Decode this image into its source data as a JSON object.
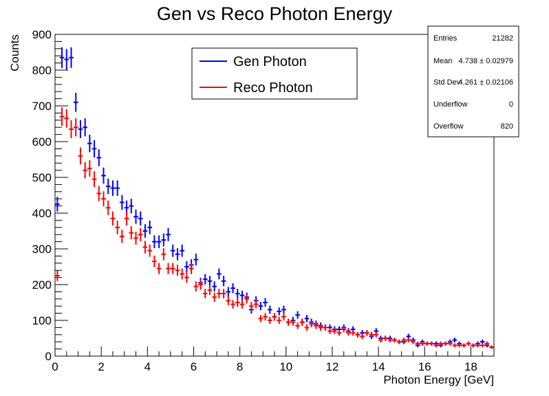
{
  "chart_data": {
    "type": "scatter",
    "title": "Gen vs Reco Photon Energy",
    "xlabel": "Photon Energy [GeV]",
    "ylabel": "Counts",
    "xlim": [
      0,
      19
    ],
    "ylim": [
      0,
      900
    ],
    "bin_width": 0.2,
    "x_ticks": [
      "0",
      "2",
      "4",
      "6",
      "8",
      "10",
      "12",
      "14",
      "16",
      "18"
    ],
    "y_ticks": [
      "0",
      "100",
      "200",
      "300",
      "400",
      "500",
      "600",
      "700",
      "800",
      "900"
    ],
    "legend_position": "top-center",
    "grid": false,
    "series": [
      {
        "name": "Gen Photon",
        "color": "#0000ff",
        "style": "errorbars",
        "x": [
          0.1,
          0.3,
          0.5,
          0.7,
          0.9,
          1.1,
          1.3,
          1.5,
          1.7,
          1.9,
          2.1,
          2.3,
          2.5,
          2.7,
          2.9,
          3.1,
          3.3,
          3.5,
          3.7,
          3.9,
          4.1,
          4.3,
          4.5,
          4.7,
          4.9,
          5.1,
          5.3,
          5.5,
          5.7,
          5.9,
          6.1,
          6.3,
          6.5,
          6.7,
          6.9,
          7.1,
          7.3,
          7.5,
          7.7,
          7.9,
          8.1,
          8.3,
          8.5,
          8.7,
          8.9,
          9.1,
          9.3,
          9.5,
          9.7,
          9.9,
          10.1,
          10.3,
          10.5,
          10.7,
          10.9,
          11.1,
          11.3,
          11.5,
          11.7,
          11.9,
          12.1,
          12.3,
          12.5,
          12.7,
          12.9,
          13.1,
          13.3,
          13.5,
          13.7,
          13.9,
          14.1,
          14.3,
          14.5,
          14.7,
          14.9,
          15.1,
          15.3,
          15.5,
          15.7,
          15.9,
          16.1,
          16.3,
          16.5,
          16.7,
          16.9,
          17.1,
          17.3,
          17.5,
          17.7,
          17.9,
          18.1,
          18.3,
          18.5,
          18.7,
          18.9
        ],
        "y": [
          425,
          835,
          830,
          835,
          710,
          635,
          640,
          595,
          580,
          555,
          505,
          475,
          470,
          470,
          430,
          415,
          420,
          390,
          385,
          350,
          360,
          320,
          320,
          325,
          340,
          295,
          285,
          295,
          250,
          255,
          270,
          205,
          215,
          210,
          195,
          230,
          210,
          180,
          190,
          175,
          170,
          165,
          130,
          155,
          140,
          150,
          130,
          110,
          125,
          130,
          95,
          100,
          115,
          95,
          105,
          95,
          90,
          85,
          80,
          80,
          75,
          75,
          80,
          70,
          75,
          60,
          65,
          65,
          55,
          70,
          50,
          50,
          50,
          45,
          40,
          40,
          55,
          45,
          30,
          40,
          35,
          35,
          35,
          30,
          35,
          40,
          45,
          35,
          30,
          35,
          30,
          35,
          40,
          30,
          25
        ]
      },
      {
        "name": "Reco Photon",
        "color": "#ff0000",
        "style": "errorbars",
        "x": [
          0.1,
          0.3,
          0.5,
          0.7,
          0.9,
          1.1,
          1.3,
          1.5,
          1.7,
          1.9,
          2.1,
          2.3,
          2.5,
          2.7,
          2.9,
          3.1,
          3.3,
          3.5,
          3.7,
          3.9,
          4.1,
          4.3,
          4.5,
          4.7,
          4.9,
          5.1,
          5.3,
          5.5,
          5.7,
          5.9,
          6.1,
          6.3,
          6.5,
          6.7,
          6.9,
          7.1,
          7.3,
          7.5,
          7.7,
          7.9,
          8.1,
          8.3,
          8.5,
          8.7,
          8.9,
          9.1,
          9.3,
          9.5,
          9.7,
          9.9,
          10.1,
          10.3,
          10.5,
          10.7,
          10.9,
          11.1,
          11.3,
          11.5,
          11.7,
          11.9,
          12.1,
          12.3,
          12.5,
          12.7,
          12.9,
          13.1,
          13.3,
          13.5,
          13.7,
          13.9,
          14.1,
          14.3,
          14.5,
          14.7,
          14.9,
          15.1,
          15.3,
          15.5,
          15.7,
          15.9,
          16.1,
          16.3,
          16.5,
          16.7,
          16.9,
          17.1,
          17.3,
          17.5,
          17.7,
          17.9,
          18.1,
          18.3,
          18.5,
          18.7,
          18.9
        ],
        "y": [
          225,
          670,
          665,
          635,
          640,
          560,
          520,
          525,
          495,
          455,
          440,
          415,
          385,
          360,
          335,
          385,
          345,
          330,
          340,
          305,
          295,
          265,
          245,
          285,
          245,
          245,
          240,
          230,
          220,
          245,
          195,
          200,
          175,
          185,
          165,
          175,
          175,
          155,
          145,
          150,
          145,
          160,
          140,
          145,
          105,
          110,
          100,
          110,
          100,
          110,
          95,
          95,
          85,
          95,
          80,
          90,
          85,
          80,
          80,
          70,
          70,
          65,
          75,
          65,
          65,
          60,
          55,
          65,
          60,
          60,
          45,
          50,
          45,
          45,
          40,
          45,
          45,
          40,
          35,
          35,
          35,
          35,
          30,
          35,
          35,
          35,
          30,
          30,
          30,
          35,
          30,
          30,
          30,
          35,
          25
        ]
      }
    ]
  },
  "stats_box": {
    "rows": [
      {
        "label": "Entries",
        "value": "21282"
      },
      {
        "label": "Mean",
        "value": "4.738 ± 0.02979"
      },
      {
        "label": "Std Dev",
        "value": "4.261 ± 0.02106"
      },
      {
        "label": "Underflow",
        "value": "0"
      },
      {
        "label": "Overflow",
        "value": "820"
      }
    ]
  }
}
